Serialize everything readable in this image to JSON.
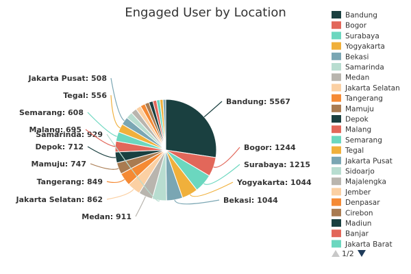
{
  "chart_data": {
    "type": "pie",
    "title": "Engaged User by Location",
    "slices": [
      {
        "label": "Bandung",
        "value": 5567,
        "color": "#1a4040"
      },
      {
        "label": "Bogor",
        "value": 1244,
        "color": "#e2675a"
      },
      {
        "label": "Surabaya",
        "value": 1215,
        "color": "#6bd7bf"
      },
      {
        "label": "Yogyakarta",
        "value": 1044,
        "color": "#f0b03b"
      },
      {
        "label": "Bekasi",
        "value": 1044,
        "color": "#7aa6b3"
      },
      {
        "label": "Samarinda",
        "value": 929,
        "color": "#b8ddd0"
      },
      {
        "label": "Medan",
        "value": 911,
        "color": "#b9b5ae"
      },
      {
        "label": "Jakarta Selatan",
        "value": 862,
        "color": "#fbd0a3"
      },
      {
        "label": "Tangerang",
        "value": 849,
        "color": "#f58a34"
      },
      {
        "label": "Mamuju",
        "value": 747,
        "color": "#a97b51"
      },
      {
        "label": "Depok",
        "value": 712,
        "color": "#1a4040"
      },
      {
        "label": "Malang",
        "value": 695,
        "color": "#e2675a"
      },
      {
        "label": "Semarang",
        "value": 608,
        "color": "#6bd7bf"
      },
      {
        "label": "Tegal",
        "value": 556,
        "color": "#f0b03b"
      },
      {
        "label": "Jakarta Pusat",
        "value": 508,
        "color": "#7aa6b3"
      },
      {
        "label": "Sidoarjo",
        "value": 430,
        "color": "#b8ddd0"
      },
      {
        "label": "Majalengka",
        "value": 380,
        "color": "#b9b5ae"
      },
      {
        "label": "Jember",
        "value": 340,
        "color": "#fbd0a3"
      },
      {
        "label": "Denpasar",
        "value": 310,
        "color": "#f58a34"
      },
      {
        "label": "Cirebon",
        "value": 280,
        "color": "#a97b51"
      },
      {
        "label": "Madiun",
        "value": 260,
        "color": "#1a4040"
      },
      {
        "label": "Banjar",
        "value": 240,
        "color": "#e2675a"
      },
      {
        "label": "Jakarta Barat",
        "value": 220,
        "color": "#6bd7bf"
      },
      {
        "label": "",
        "value": 200,
        "color": "#f0b03b"
      },
      {
        "label": "",
        "value": 180,
        "color": "#7aa6b3"
      }
    ],
    "labeled_count": 15,
    "legend_placement": "right",
    "legend_visible_count": 23
  },
  "legend_pager": {
    "text": "1/2"
  }
}
